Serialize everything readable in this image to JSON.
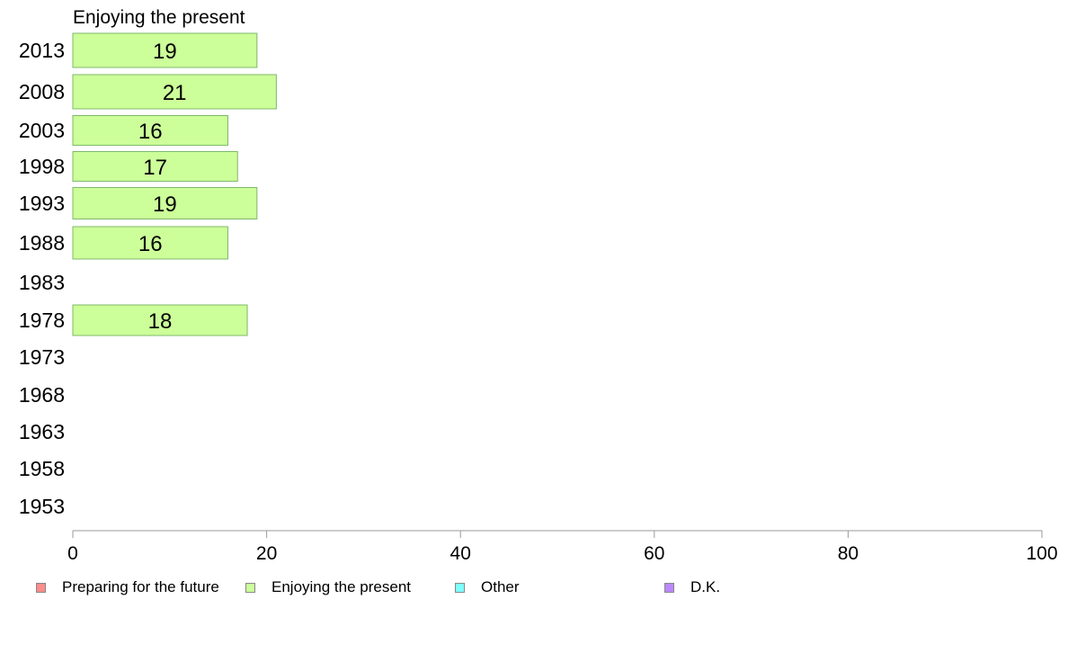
{
  "chart_data": {
    "type": "bar",
    "orientation": "horizontal",
    "title": "Enjoying the present",
    "categories": [
      "2013",
      "2008",
      "2003",
      "1998",
      "1993",
      "1988",
      "1983",
      "1978",
      "1973",
      "1968",
      "1963",
      "1958",
      "1953"
    ],
    "series": [
      {
        "name": "Enjoying the present",
        "color": "#ccff99",
        "values": [
          19,
          21,
          16,
          17,
          19,
          16,
          null,
          18,
          null,
          null,
          null,
          null,
          null
        ],
        "labels": [
          "19",
          "21",
          "16",
          "17",
          "19",
          "16",
          "",
          "18",
          "",
          "",
          "",
          "",
          ""
        ]
      }
    ],
    "xlim": [
      0,
      100
    ],
    "xticks": [
      "0",
      "20",
      "40",
      "60",
      "80",
      "100"
    ],
    "grid": false,
    "legend_position": "bottom",
    "legend": [
      {
        "label": "Preparing for the future",
        "color": "#ff8c8c"
      },
      {
        "label": "Enjoying the present",
        "color": "#ccff99"
      },
      {
        "label": "Other",
        "color": "#80ffff"
      },
      {
        "label": "D.K.",
        "color": "#bb88ff"
      }
    ]
  }
}
